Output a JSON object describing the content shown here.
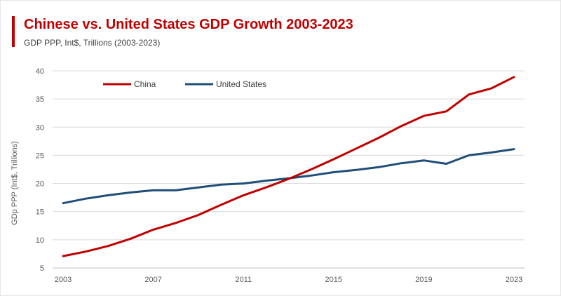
{
  "chart_data": {
    "type": "line",
    "title": "Chinese vs. United States GDP Growth 2003-2023",
    "subtitle": "GDP PPP, Int$, Trillions (2003-2023)",
    "xlabel": "",
    "ylabel": "GDp PPP (Int$, Trillions)",
    "x": [
      2003,
      2004,
      2005,
      2006,
      2007,
      2008,
      2009,
      2010,
      2011,
      2012,
      2013,
      2014,
      2015,
      2016,
      2017,
      2018,
      2019,
      2020,
      2021,
      2022,
      2023
    ],
    "xticks": [
      "2003",
      "2007",
      "2011",
      "2015",
      "2019",
      "2023"
    ],
    "yticks": [
      "5",
      "10",
      "15",
      "20",
      "25",
      "30",
      "35",
      "40"
    ],
    "ylim": [
      5,
      40
    ],
    "xlim": [
      2003,
      2023
    ],
    "grid": "horizontal",
    "legend_position": "top-left",
    "series": [
      {
        "name": "China",
        "color": "#c00000",
        "values": [
          7.1,
          7.9,
          8.9,
          10.2,
          11.8,
          13.0,
          14.4,
          16.2,
          17.9,
          19.3,
          20.8,
          22.5,
          24.3,
          26.2,
          28.1,
          30.2,
          32.0,
          32.8,
          35.8,
          36.9,
          38.9
        ]
      },
      {
        "name": "United States",
        "color": "#1f4e79",
        "values": [
          16.5,
          17.3,
          17.9,
          18.4,
          18.8,
          18.8,
          19.3,
          19.8,
          20.0,
          20.5,
          20.9,
          21.4,
          22.0,
          22.4,
          22.9,
          23.6,
          24.1,
          23.5,
          25.0,
          25.5,
          26.1
        ]
      }
    ]
  }
}
